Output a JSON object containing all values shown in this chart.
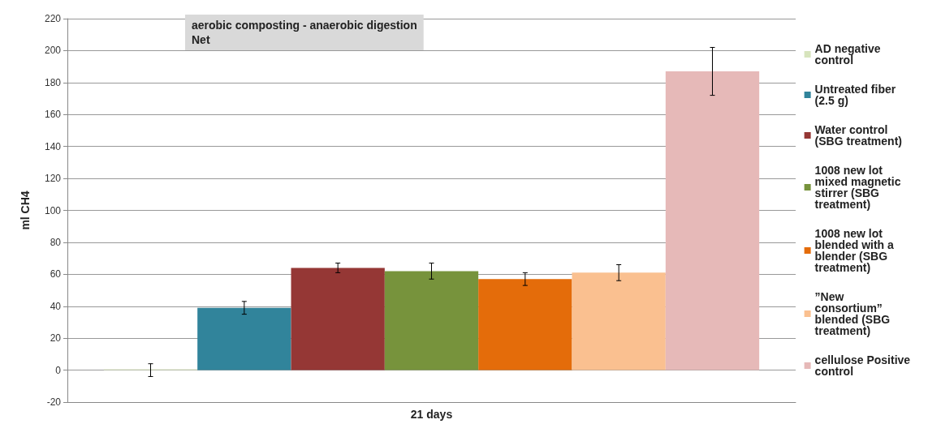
{
  "chart_data": {
    "type": "bar",
    "title": "aerobic composting - anaerobic digestion",
    "subtitle": "Net",
    "ylabel": "ml CH4",
    "categories": [
      "21 days"
    ],
    "series": [
      {
        "name": "AD negative control",
        "color": "#d7e4bd",
        "values": [
          0
        ],
        "errors": [
          4
        ]
      },
      {
        "name": "Untreated fiber (2.5 g)",
        "color": "#31849b",
        "values": [
          39
        ],
        "errors": [
          4
        ]
      },
      {
        "name": "Water control (SBG treatment)",
        "color": "#953735",
        "values": [
          64
        ],
        "errors": [
          3
        ]
      },
      {
        "name": "1008 new lot mixed magnetic stirrer (SBG treatment)",
        "color": "#77933c",
        "values": [
          62
        ],
        "errors": [
          5
        ]
      },
      {
        "name": "1008 new lot blended with a blender (SBG treatment)",
        "color": "#e46c0a",
        "values": [
          57
        ],
        "errors": [
          4
        ]
      },
      {
        "name": "”New consortium” blended (SBG treatment)",
        "color": "#fac090",
        "values": [
          61
        ],
        "errors": [
          5
        ]
      },
      {
        "name": "cellulose Positive control",
        "color": "#e6b9b8",
        "values": [
          187
        ],
        "errors": [
          15
        ]
      }
    ],
    "ylim": [
      -20,
      220
    ],
    "yticks": [
      -20,
      0,
      20,
      40,
      60,
      80,
      100,
      120,
      140,
      160,
      180,
      200,
      220
    ],
    "grid": "y",
    "legend": "right"
  }
}
